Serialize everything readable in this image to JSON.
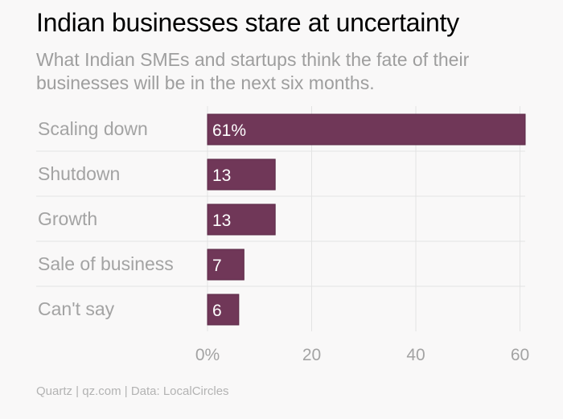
{
  "title": "Indian businesses stare at uncertainty",
  "subtitle": "What Indian SMEs and startups think the fate of their businesses will be in the next six months.",
  "footer": "Quartz | qz.com | Data: LocalCircles",
  "colors": {
    "bar": "#703758",
    "bar_border": "#5a2946",
    "grid": "#e3e3e3",
    "label": "#a3a3a3"
  },
  "chart_data": {
    "type": "bar",
    "orientation": "horizontal",
    "title": "Indian businesses stare at uncertainty",
    "subtitle": "What Indian SMEs and startups think the fate of their businesses will be in the next six months.",
    "categories": [
      "Scaling down",
      "Shutdown",
      "Growth",
      "Sale of business",
      "Can't say"
    ],
    "values": [
      61,
      13,
      13,
      7,
      6
    ],
    "data_labels": [
      "61%",
      "13",
      "13",
      "7",
      "6"
    ],
    "xlim": [
      0,
      61
    ],
    "xticks": [
      0,
      20,
      40,
      60
    ],
    "xtick_labels": [
      "0%",
      "20",
      "40",
      "60"
    ],
    "grid": true,
    "legend": "none"
  }
}
